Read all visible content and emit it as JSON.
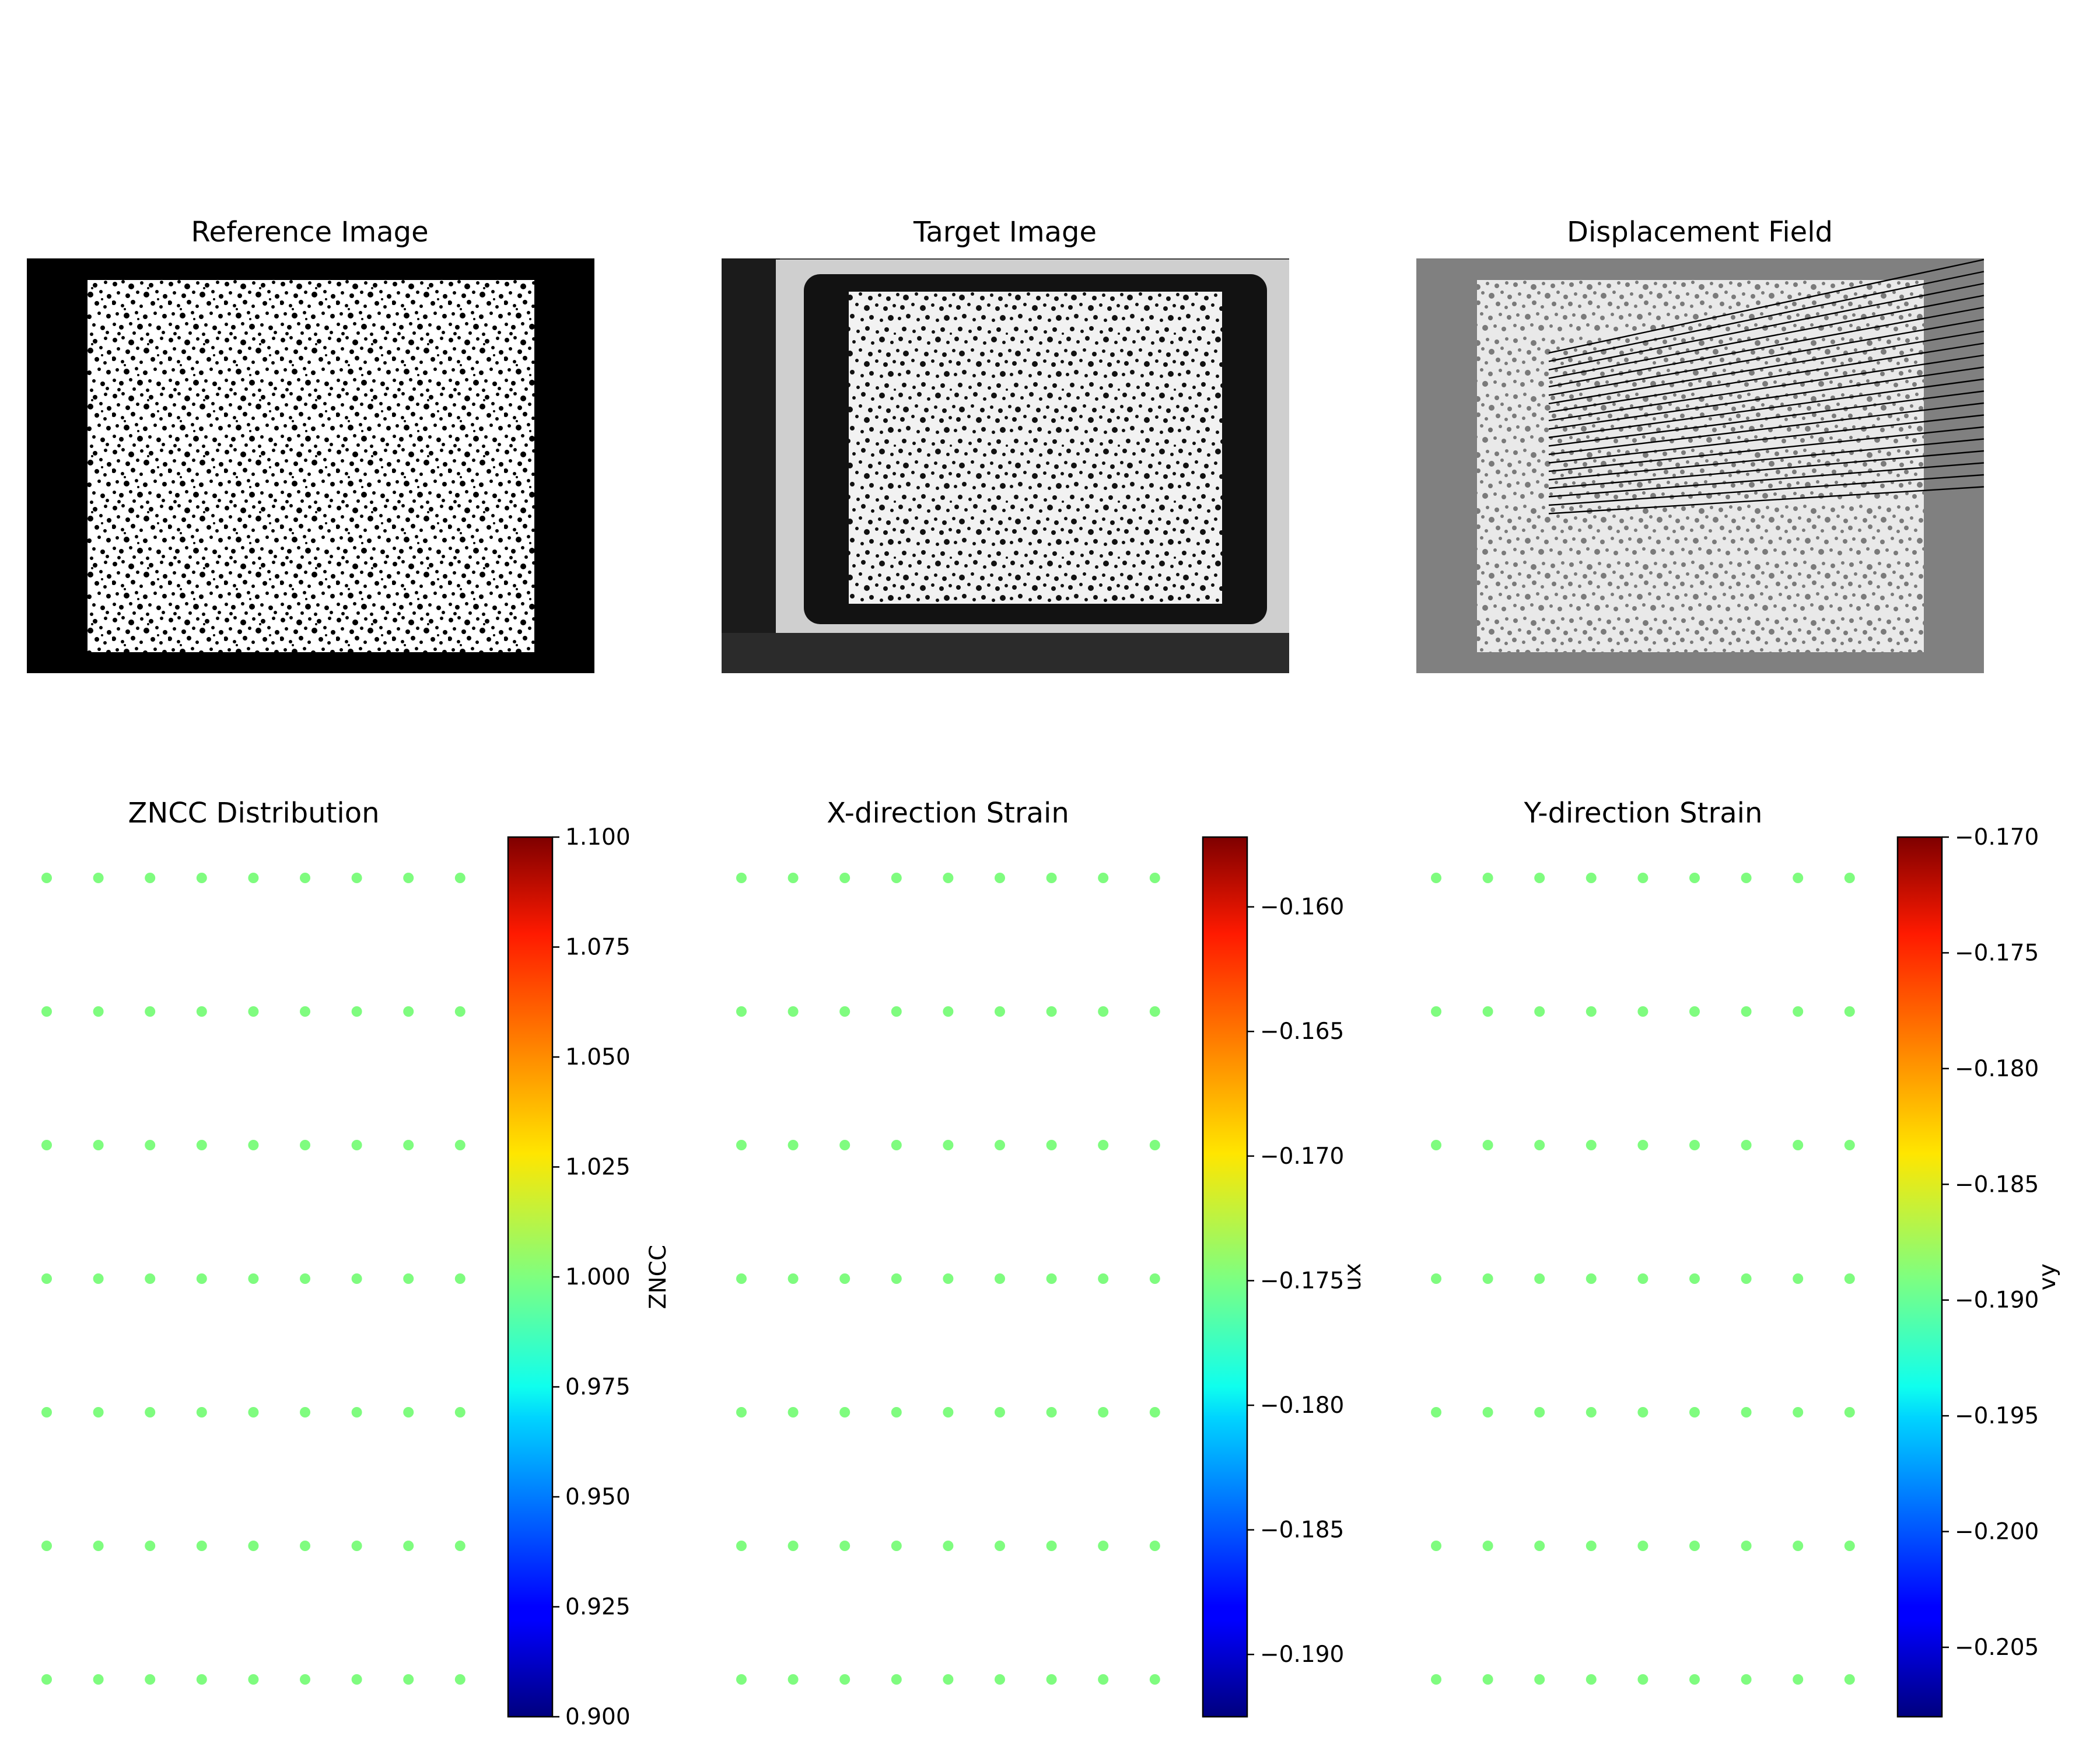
{
  "chart_data": [
    {
      "type": "image",
      "title": "Reference Image",
      "content": "speckle-pattern",
      "background": "#000000"
    },
    {
      "type": "image",
      "title": "Target Image",
      "content": "speckle-pattern-on-tablet-photo",
      "background": "#3a3a3a"
    },
    {
      "type": "image-with-vectors",
      "title": "Displacement Field",
      "content": "speckle-pattern-with-displacement-arrows",
      "background": "#808080",
      "vector_color": "#000000"
    },
    {
      "type": "scatter",
      "title": "ZNCC Distribution",
      "grid": {
        "cols": 9,
        "rows": 7
      },
      "point_value": 1.0,
      "point_color": "#7ffc7f",
      "colorbar": {
        "label": "ZNCC",
        "colormap": "jet",
        "range": [
          0.9,
          1.1
        ],
        "ticks": [
          "1.100",
          "1.075",
          "1.050",
          "1.025",
          "1.000",
          "0.975",
          "0.950",
          "0.925",
          "0.900"
        ],
        "tick_values": [
          1.1,
          1.075,
          1.05,
          1.025,
          1.0,
          0.975,
          0.95,
          0.925,
          0.9
        ]
      }
    },
    {
      "type": "scatter",
      "title": "X-direction Strain",
      "grid": {
        "cols": 9,
        "rows": 7
      },
      "point_value": -0.1745,
      "point_color": "#7ffc7f",
      "colorbar": {
        "label": "ux",
        "colormap": "jet",
        "range": [
          -0.1925,
          -0.1572
        ],
        "ticks": [
          "−0.160",
          "−0.165",
          "−0.170",
          "−0.175",
          "−0.180",
          "−0.185",
          "−0.190"
        ],
        "tick_values": [
          -0.16,
          -0.165,
          -0.17,
          -0.175,
          -0.18,
          -0.185,
          -0.19
        ]
      }
    },
    {
      "type": "scatter",
      "title": "Y-direction Strain",
      "grid": {
        "cols": 9,
        "rows": 7
      },
      "point_value": -0.189,
      "point_color": "#7ffc7f",
      "colorbar": {
        "label": "vy",
        "colormap": "jet",
        "range": [
          -0.208,
          -0.17
        ],
        "ticks": [
          "−0.170",
          "−0.175",
          "−0.180",
          "−0.185",
          "−0.190",
          "−0.195",
          "−0.200",
          "−0.205"
        ],
        "tick_values": [
          -0.17,
          -0.175,
          -0.18,
          -0.185,
          -0.19,
          -0.195,
          -0.2,
          -0.205
        ]
      }
    }
  ]
}
